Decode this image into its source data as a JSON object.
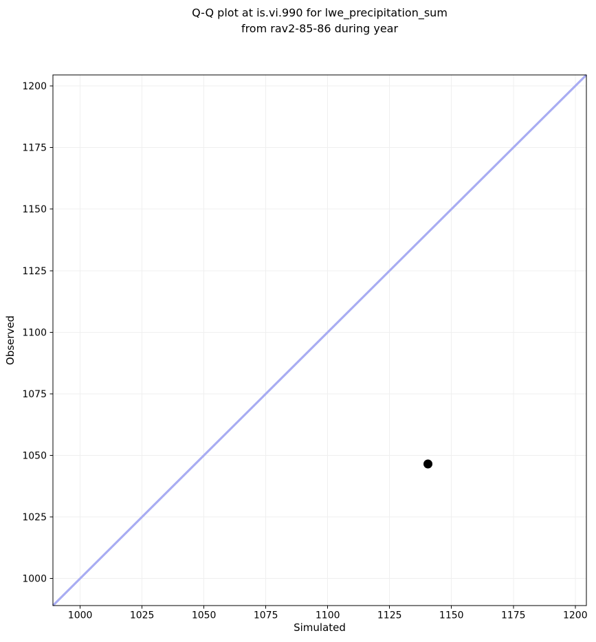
{
  "chart_data": {
    "type": "scatter",
    "title": "Q-Q plot at is.vi.990 for lwe_precipitation_sum\nfrom rav2-85-86 during year",
    "title_lines": [
      "Q-Q plot at is.vi.990 for lwe_precipitation_sum",
      "from rav2-85-86 during year"
    ],
    "xlabel": "Simulated",
    "ylabel": "Observed",
    "xlim": [
      989,
      1204.5
    ],
    "ylim": [
      989,
      1204.5
    ],
    "xticks": [
      1000,
      1025,
      1050,
      1075,
      1100,
      1125,
      1150,
      1175,
      1200
    ],
    "yticks": [
      1000,
      1025,
      1050,
      1075,
      1100,
      1125,
      1150,
      1175,
      1200
    ],
    "grid": true,
    "series": [
      {
        "name": "quantile-points",
        "marker": "circle",
        "color": "#000000",
        "points": [
          {
            "simulated": 1140.5,
            "observed": 1046.5
          }
        ]
      }
    ],
    "identity_line": {
      "equation": "y = x",
      "span": [
        989,
        1204.5
      ],
      "color": "#a8acf2",
      "width": 3.2
    },
    "point_style": {
      "color": "#000000",
      "radius": 6.5
    },
    "colors": {
      "background": "#ffffff",
      "grid": "#efefef",
      "spine": "#000000",
      "text": "#000000"
    }
  }
}
